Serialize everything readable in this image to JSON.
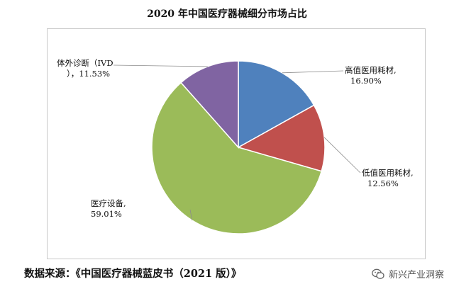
{
  "chart_data": {
    "type": "pie",
    "title": "2020 年中国医疗器械细分市场占比",
    "slices": [
      {
        "name": "高值医用耗材,",
        "value": 16.9,
        "value_label": "16.90%",
        "color": "#4f81bd"
      },
      {
        "name": "低值医用耗材,",
        "value": 12.56,
        "value_label": "12.56%",
        "color": "#c0504d"
      },
      {
        "name": "医疗设备,",
        "value": 59.01,
        "value_label": "59.01%",
        "color": "#9bbb59"
      },
      {
        "name": "体外诊断（IVD",
        "value": 11.53,
        "value_label": "），11.53%",
        "color": "#8064a2"
      }
    ],
    "start": "top, clockwise",
    "legend": "none"
  },
  "footer": {
    "source": "数据来源：《中国医疗器械蓝皮书（2021 版）》"
  },
  "watermark": {
    "text": "新兴产业洞察",
    "icon": "wechat-icon"
  }
}
